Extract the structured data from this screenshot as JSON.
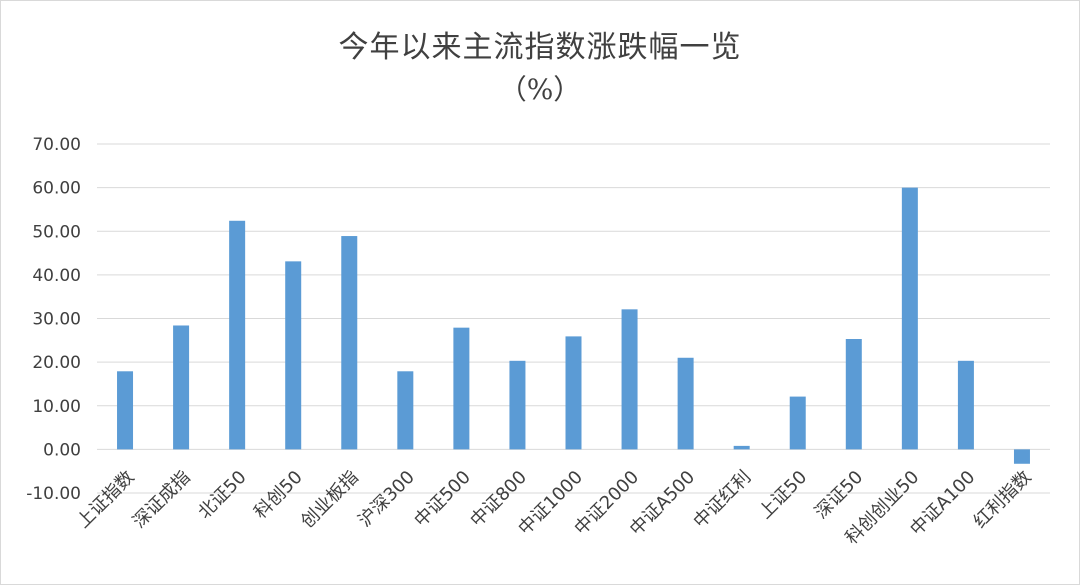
{
  "chart_data": {
    "type": "bar",
    "title": "今年以来主流指数涨跌幅一览",
    "subtitle": "（%）",
    "xlabel": "",
    "ylabel": "",
    "ylim": [
      -10,
      70
    ],
    "yticks": [
      -10,
      0,
      10,
      20,
      30,
      40,
      50,
      60,
      70
    ],
    "ytick_labels": [
      "-10.00",
      "0.00",
      "10.00",
      "20.00",
      "30.00",
      "40.00",
      "50.00",
      "60.00",
      "70.00"
    ],
    "grid": true,
    "categories": [
      "上证指数",
      "深证成指",
      "北证50",
      "科创50",
      "创业板指",
      "沪深300",
      "中证500",
      "中证800",
      "中证1000",
      "中证2000",
      "中证A500",
      "中证红利",
      "上证50",
      "深证50",
      "科创创业50",
      "中证A100",
      "红利指数"
    ],
    "values": [
      17.9,
      28.4,
      52.4,
      43.1,
      48.9,
      17.9,
      27.9,
      20.3,
      25.9,
      32.1,
      21.0,
      0.8,
      12.1,
      25.3,
      60.0,
      20.3,
      -3.3
    ],
    "colors": {
      "bar": "#5b9bd5",
      "grid": "#d9d9d9",
      "text": "#404040"
    }
  }
}
